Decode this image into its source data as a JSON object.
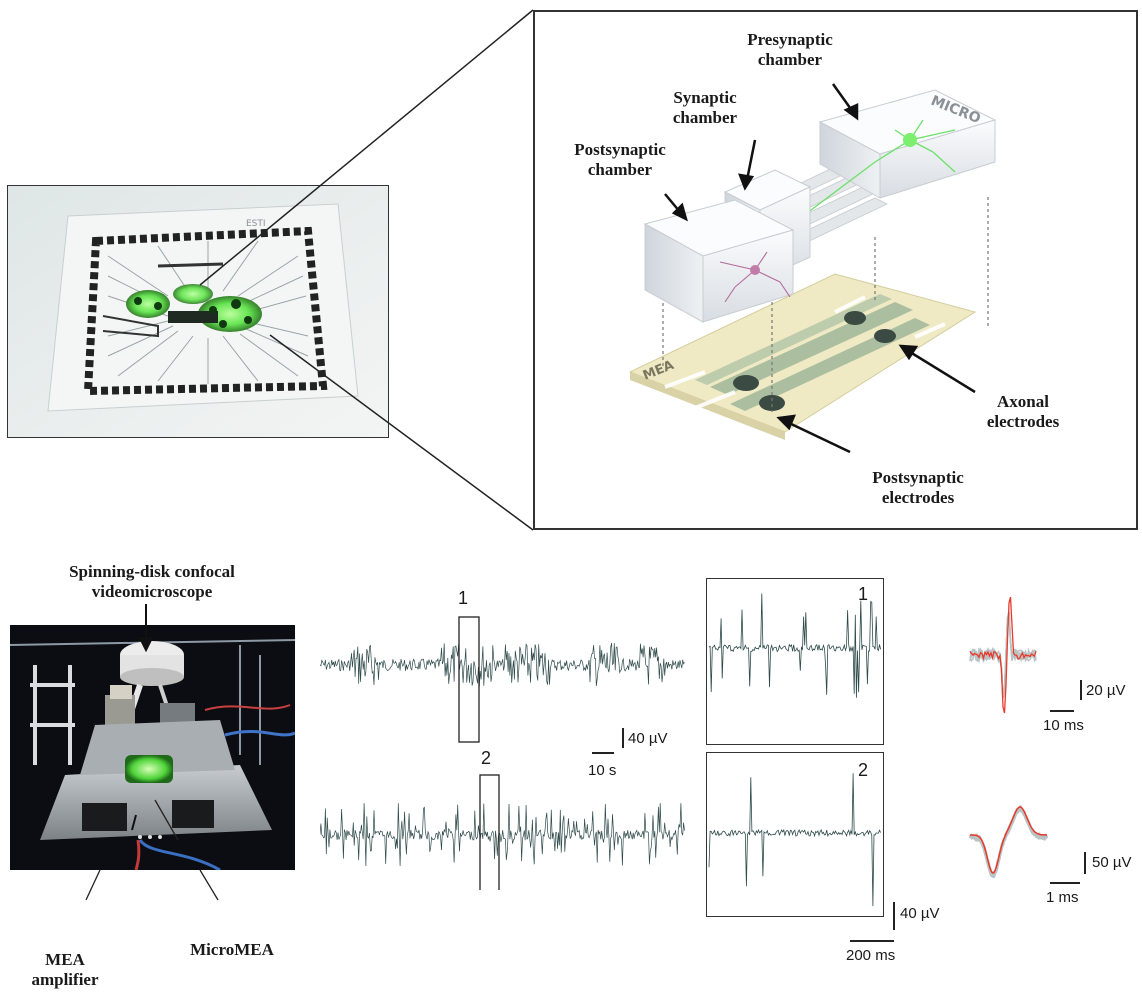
{
  "zoom_labels": {
    "presynaptic": "Presynaptic chamber",
    "synaptic": "Synaptic chamber",
    "postsynaptic": "Postsynaptic chamber",
    "axonal_electrodes": "Axonal electrodes",
    "postsynaptic_electrodes": "Postsynaptic electrodes",
    "chip_micro": "MICRO",
    "chip_mea": "MEA"
  },
  "setup_labels": {
    "microscope": "Spinning-disk confocal videomicroscope",
    "mea_amplifier": "MEA amplifier",
    "micromea": "MicroMEA"
  },
  "traces": {
    "trace1_id": "1",
    "trace2_id": "2",
    "zoom1_id": "1",
    "zoom2_id": "2",
    "scale_long_v": "40 µV",
    "scale_long_t": "10 s",
    "scale_zoom_v": "40 µV",
    "scale_zoom_t": "200 ms",
    "spike1_v": "20 µV",
    "spike1_t": "10 ms",
    "spike2_v": "50 µV",
    "spike2_t": "1 ms"
  },
  "colors": {
    "trace": "#2f4a4a",
    "spike_avg": "#e8392b",
    "spike_overlay": "#b9c3c3",
    "fluor_green": "#5fe34a",
    "mea_base": "#efe9c4"
  }
}
